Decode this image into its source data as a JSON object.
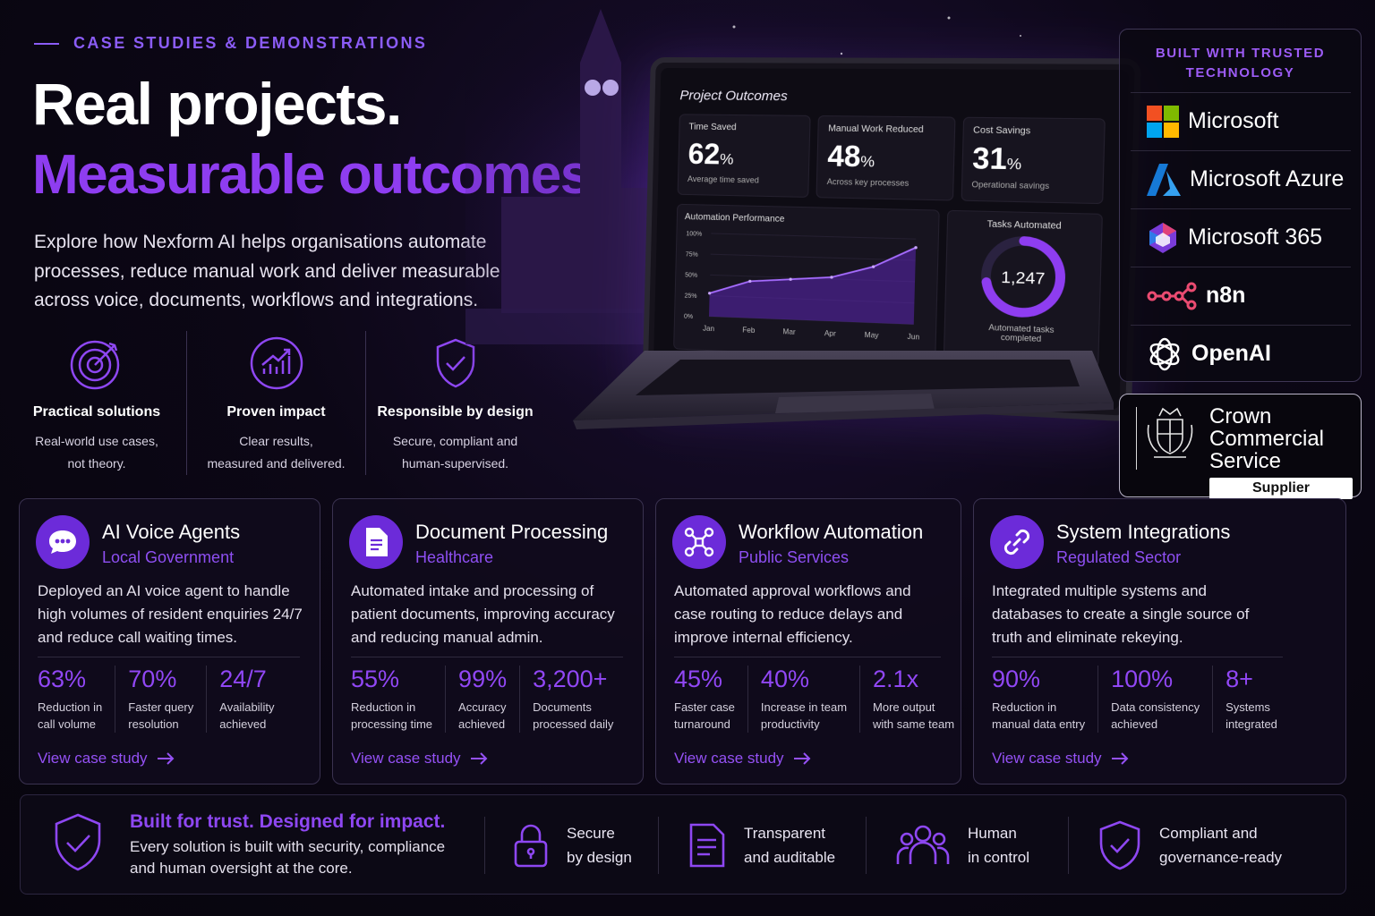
{
  "hero": {
    "kicker": "CASE STUDIES & DEMONSTRATIONS",
    "title_line1": "Real projects.",
    "title_line2": "Measurable outcomes.",
    "intro": "Explore how Nexform AI helps organisations automate processes, reduce manual work and deliver measurable results across voice, documents, workflows and integrations.",
    "features": [
      {
        "title": "Practical solutions",
        "line1": "Real-world use cases,",
        "line2": "not theory.",
        "icon": "target-icon"
      },
      {
        "title": "Proven impact",
        "line1": "Clear results,",
        "line2": "measured and delivered.",
        "icon": "growth-chart-icon"
      },
      {
        "title": "Responsible by design",
        "line1": "Secure, compliant and",
        "line2": "human-supervised.",
        "icon": "shield-check-icon"
      }
    ]
  },
  "dashboard": {
    "title": "Project Outcomes",
    "metrics": [
      {
        "label": "Time Saved",
        "value": "62",
        "unit": "%",
        "sub": "Average time saved"
      },
      {
        "label": "Manual Work Reduced",
        "value": "48",
        "unit": "%",
        "sub": "Across key processes"
      },
      {
        "label": "Cost Savings",
        "value": "31",
        "unit": "%",
        "sub": "Operational savings"
      }
    ],
    "performance_title": "Automation Performance",
    "tasks_title": "Tasks Automated",
    "tasks_value": "1,247",
    "tasks_sub1": "Automated tasks",
    "tasks_sub2": "completed",
    "tasks_ring_fraction": 0.72
  },
  "chart_data": {
    "type": "area",
    "title": "Automation Performance",
    "categories": [
      "Jan",
      "Feb",
      "Mar",
      "Apr",
      "May",
      "Jun"
    ],
    "y_ticks": [
      "100%",
      "75%",
      "50%",
      "25%",
      "0%"
    ],
    "ylim": [
      0,
      100
    ],
    "series": [
      {
        "values": [
          28,
          44,
          48,
          52,
          66,
          90
        ]
      }
    ]
  },
  "tech": {
    "title_line1": "BUILT WITH TRUSTED",
    "title_line2": "TECHNOLOGY",
    "items": [
      {
        "name": "Microsoft",
        "icon": "microsoft-logo-icon"
      },
      {
        "name": "Microsoft Azure",
        "icon": "azure-logo-icon"
      },
      {
        "name": "Microsoft 365",
        "icon": "m365-logo-icon"
      },
      {
        "name": "n8n",
        "icon": "n8n-logo-icon"
      },
      {
        "name": "OpenAI",
        "icon": "openai-logo-icon"
      }
    ]
  },
  "ccs": {
    "line1": "Crown",
    "line2": "Commercial",
    "line3": "Service",
    "badge": "Supplier"
  },
  "cards": [
    {
      "title": "AI Voice Agents",
      "subtitle": "Local Government",
      "desc": "Deployed an AI voice agent to handle high volumes of resident enquiries 24/7 and reduce call waiting times.",
      "stats": [
        {
          "value": "63%",
          "l1": "Reduction in",
          "l2": "call volume"
        },
        {
          "value": "70%",
          "l1": "Faster query",
          "l2": "resolution"
        },
        {
          "value": "24/7",
          "l1": "Availability",
          "l2": "achieved"
        }
      ],
      "link": "View case study"
    },
    {
      "title": "Document Processing",
      "subtitle": "Healthcare",
      "desc": "Automated intake and processing of patient documents, improving accuracy and reducing manual admin.",
      "stats": [
        {
          "value": "55%",
          "l1": "Reduction in",
          "l2": "processing time"
        },
        {
          "value": "99%",
          "l1": "Accuracy",
          "l2": "achieved"
        },
        {
          "value": "3,200+",
          "l1": "Documents",
          "l2": "processed daily"
        }
      ],
      "link": "View case study"
    },
    {
      "title": "Workflow Automation",
      "subtitle": "Public Services",
      "desc": "Automated approval workflows and case routing to reduce delays and improve internal efficiency.",
      "stats": [
        {
          "value": "45%",
          "l1": "Faster case",
          "l2": "turnaround"
        },
        {
          "value": "40%",
          "l1": "Increase in team",
          "l2": "productivity"
        },
        {
          "value": "2.1x",
          "l1": "More output",
          "l2": "with same team"
        }
      ],
      "link": "View case study"
    },
    {
      "title": "System Integrations",
      "subtitle": "Regulated Sector",
      "desc": "Integrated multiple systems and databases to create a single source of truth and eliminate rekeying.",
      "stats": [
        {
          "value": "90%",
          "l1": "Reduction in",
          "l2": "manual data entry"
        },
        {
          "value": "100%",
          "l1": "Data consistency",
          "l2": "achieved"
        },
        {
          "value": "8+",
          "l1": "Systems",
          "l2": "integrated"
        }
      ],
      "link": "View case study"
    }
  ],
  "trust": {
    "title": "Built for trust. Designed for impact.",
    "desc": "Every solution is built with security, compliance and human oversight at the core.",
    "items": [
      {
        "label": "Secure\nby design",
        "icon": "padlock-icon"
      },
      {
        "label": "Transparent\nand auditable",
        "icon": "document-icon"
      },
      {
        "label": "Human\nin control",
        "icon": "people-icon"
      },
      {
        "label": "Compliant and\ngovernance-ready",
        "icon": "shield-check-icon"
      }
    ]
  },
  "colors": {
    "accent": "#8e3df0",
    "accent_light": "#9d5cf6",
    "icon_bg": "#6c2bd9",
    "background": "#0c0716"
  }
}
